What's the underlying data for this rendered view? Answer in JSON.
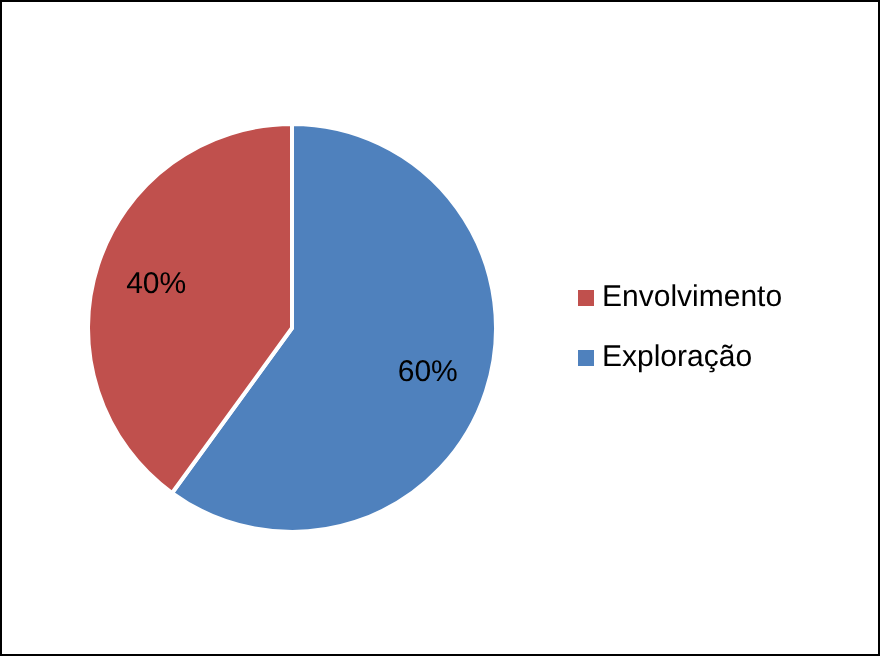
{
  "chart_data": {
    "type": "pie",
    "categories": [
      "Exploração",
      "Envolvimento"
    ],
    "values": [
      60,
      40
    ],
    "colors": [
      "#4f81bd",
      "#c0504d"
    ],
    "value_labels": [
      "60%",
      "40%"
    ],
    "legend": "right"
  }
}
